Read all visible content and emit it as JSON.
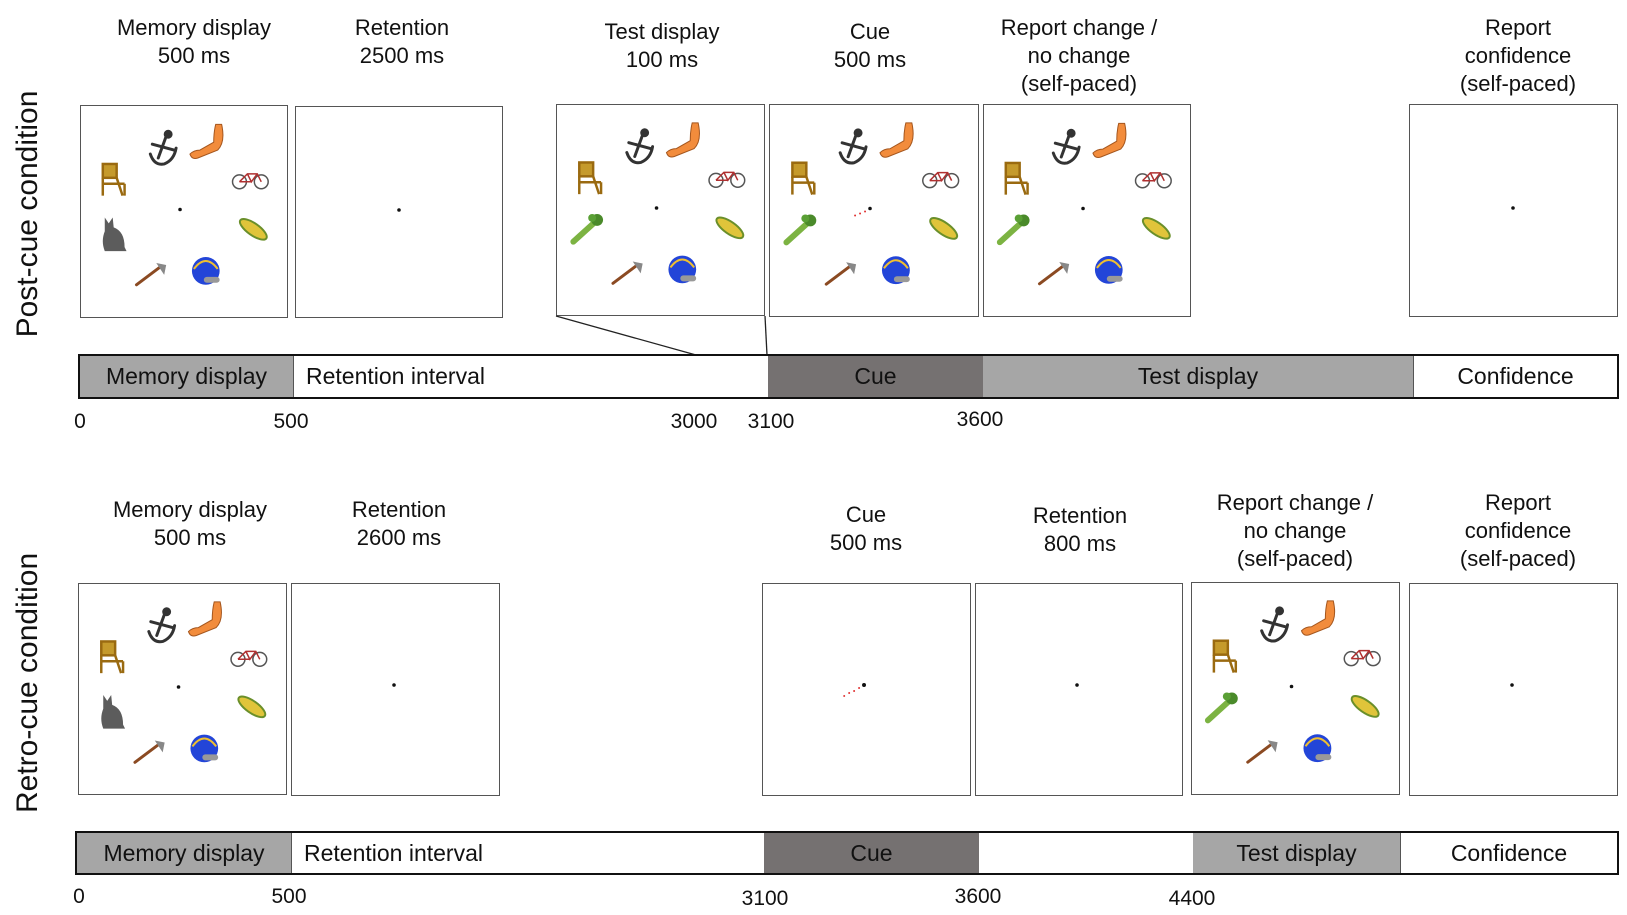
{
  "post": {
    "condition_title": "Post-cue condition",
    "labels": {
      "memory": [
        "Memory display",
        "500 ms"
      ],
      "retention": [
        "Retention",
        "2500 ms"
      ],
      "test": [
        "Test display",
        "100 ms"
      ],
      "cue": [
        "Cue",
        "500 ms"
      ],
      "report": [
        "Report change /",
        "no change",
        "(self-paced)"
      ],
      "confidence": [
        "Report",
        "confidence",
        "(self-paced)"
      ]
    },
    "timeline": {
      "segments": [
        {
          "label": "Memory display",
          "fill": "#a6a6a6"
        },
        {
          "label": "Retention interval",
          "fill": "#ffffff"
        },
        {
          "label": "Cue",
          "fill": "#757171"
        },
        {
          "label": "Test display",
          "fill": "#a6a6a6"
        },
        {
          "label": "Confidence",
          "fill": "#ffffff"
        }
      ],
      "ticks": [
        "0",
        "500",
        "3000",
        "3100",
        "3600"
      ]
    }
  },
  "retro": {
    "condition_title": "Retro-cue condition",
    "labels": {
      "memory": [
        "Memory display",
        "500 ms"
      ],
      "retention": [
        "Retention",
        "2600 ms"
      ],
      "cue": [
        "Cue",
        "500 ms"
      ],
      "retention2": [
        "Retention",
        "800 ms"
      ],
      "report": [
        "Report change /",
        "no change",
        "(self-paced)"
      ],
      "confidence": [
        "Report",
        "confidence",
        "(self-paced)"
      ]
    },
    "timeline": {
      "segments": [
        {
          "label": "Memory display",
          "fill": "#a6a6a6"
        },
        {
          "label": "Retention interval",
          "fill": "#ffffff"
        },
        {
          "label": "Cue",
          "fill": "#757171"
        },
        {
          "label": "",
          "fill": "#ffffff"
        },
        {
          "label": "Test display",
          "fill": "#a6a6a6"
        },
        {
          "label": "Confidence",
          "fill": "#ffffff"
        }
      ],
      "ticks": [
        "0",
        "500",
        "3100",
        "3600",
        "4400"
      ]
    }
  },
  "icons": [
    "anchor-icon",
    "arm-icon",
    "chair-icon",
    "bicycle-icon",
    "cat-icon",
    "celery-icon",
    "corn-icon",
    "axe-icon",
    "helmet-icon"
  ],
  "colors": {
    "cue_dots": "#e03030",
    "dark_segment": "#757171",
    "light_segment": "#a6a6a6"
  }
}
